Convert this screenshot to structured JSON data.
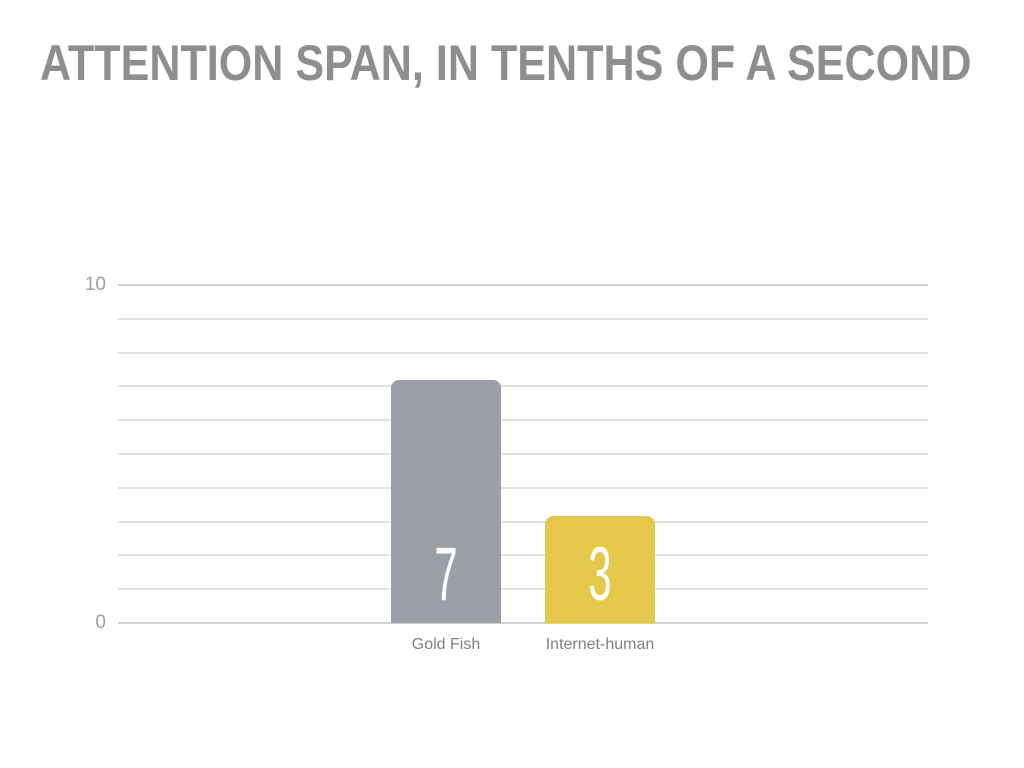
{
  "title": {
    "text": "ATTENTION SPAN, IN TENTHS OF A SECOND",
    "color": "#8e8e8e"
  },
  "chart_data": {
    "type": "bar",
    "title": "ATTENTION SPAN, IN TENTHS OF A SECOND",
    "categories": [
      "Gold Fish",
      "Internet-human"
    ],
    "values": [
      7,
      3
    ],
    "value_labels": [
      "7",
      "3"
    ],
    "bar_colors": [
      "#9aa0a6",
      "#e5c84a"
    ],
    "value_label_color": "#ffffff",
    "xlabel": "",
    "ylabel": "",
    "ylim": [
      0,
      10
    ],
    "ytick_labels": {
      "bottom": "0",
      "top": "10"
    },
    "gridlines_every": 1,
    "grid": true,
    "legend": false,
    "colors": {
      "minor_gridline": "#e1e1e1",
      "major_gridline": "#d0d0d0",
      "tick_label": "#9aa0a5",
      "category_label": "#808080"
    }
  }
}
